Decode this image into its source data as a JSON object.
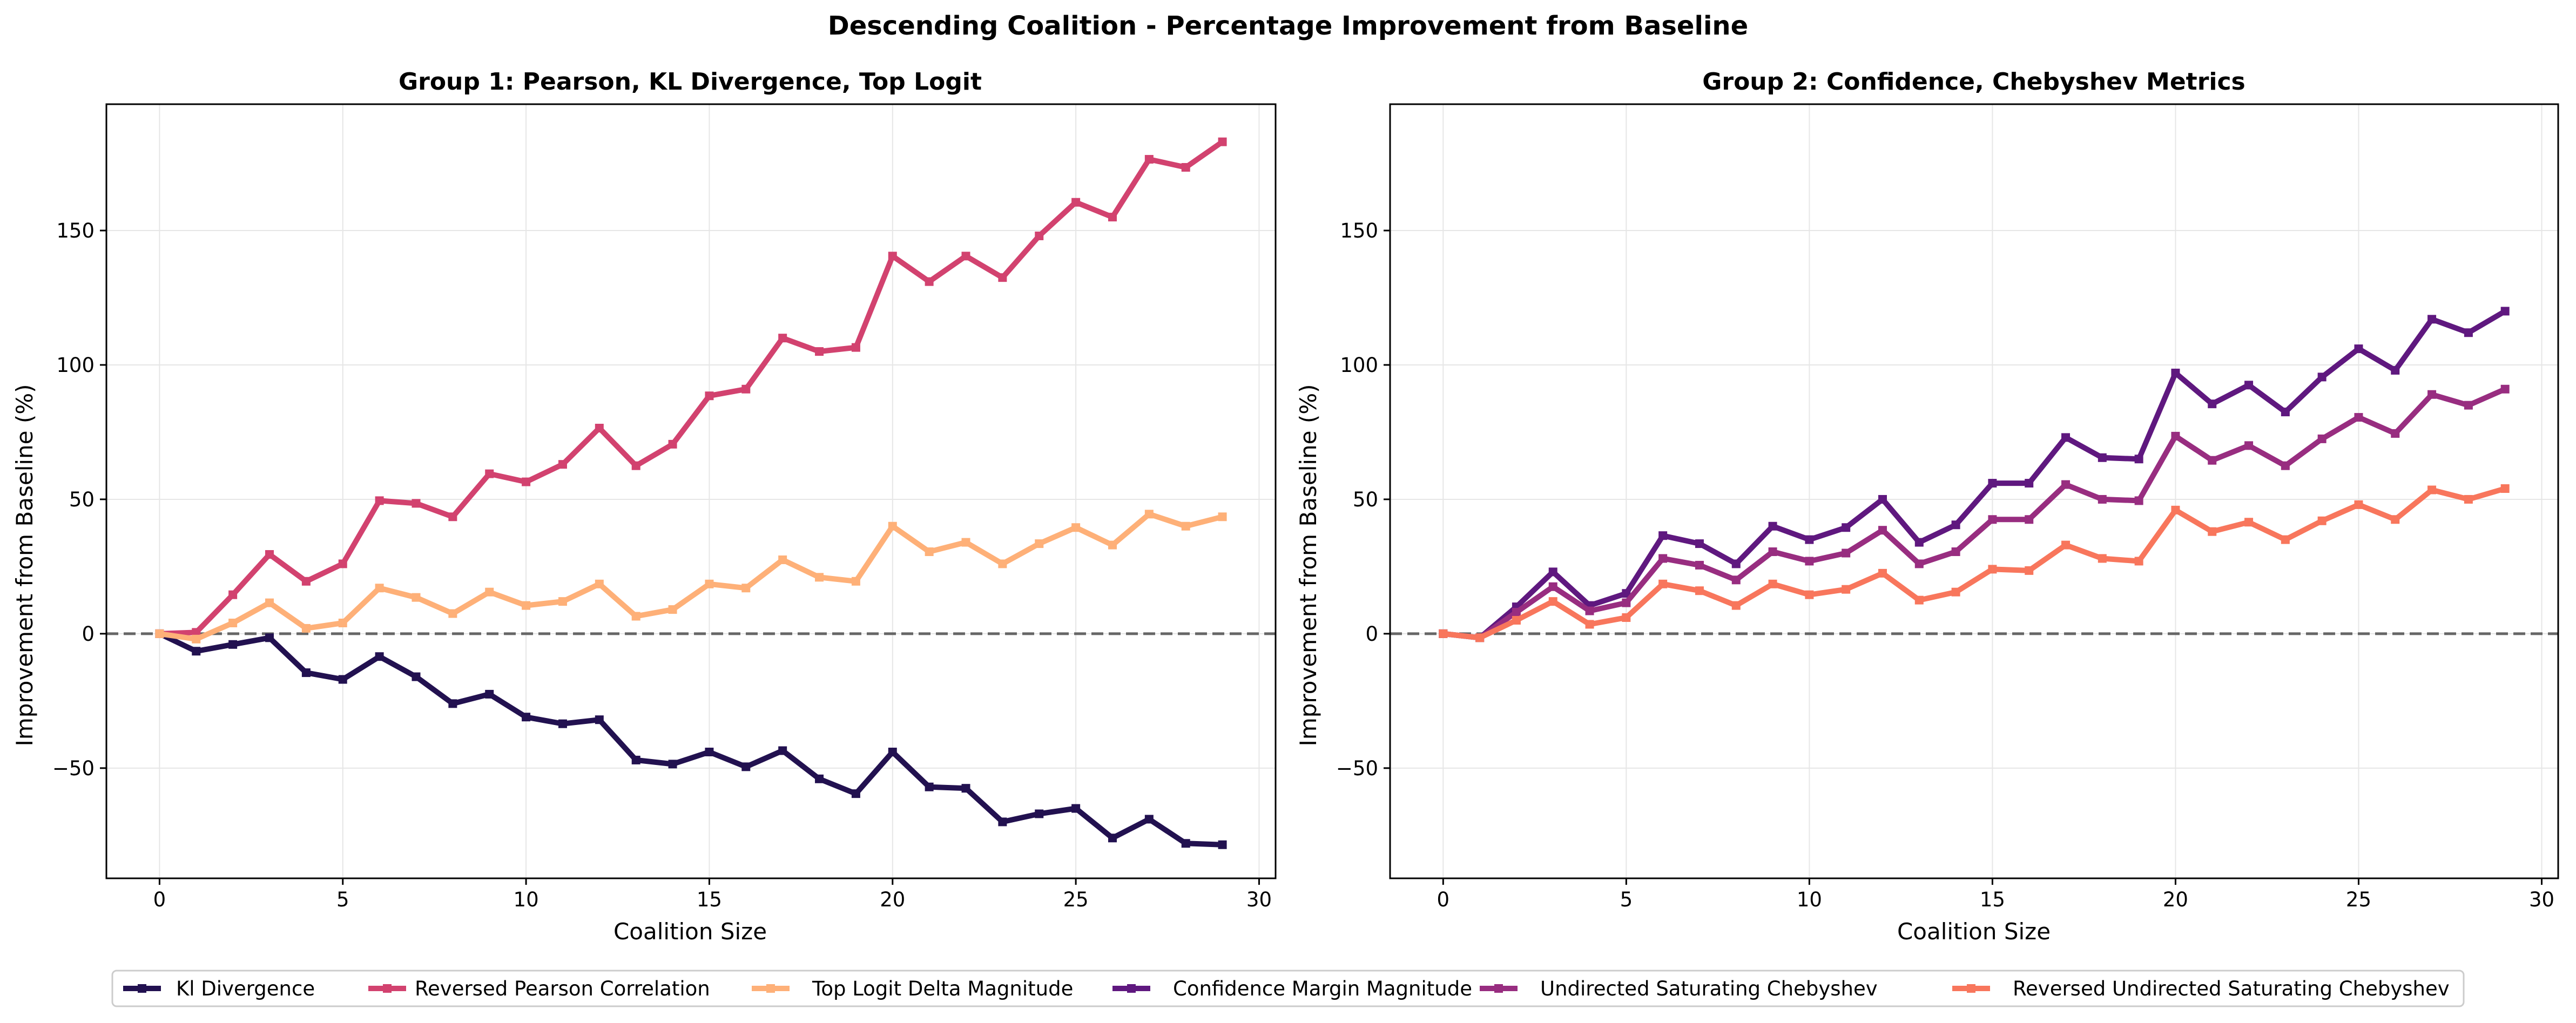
{
  "title": "Descending Coalition - Percentage Improvement from Baseline",
  "colors": {
    "kl": "#221150",
    "pearson": "#d2426f",
    "toplogit": "#feb078",
    "confidence": "#5f187f",
    "undirected": "#982d80",
    "reversed_undirected": "#f8765c",
    "baseline": "#666666",
    "grid": "#e6e6e6"
  },
  "legend": {
    "position": "bottom-center",
    "items": [
      {
        "label": "Kl Divergence",
        "color": "#221150"
      },
      {
        "label": "Reversed Pearson Correlation",
        "color": "#d2426f"
      },
      {
        "label": "Top Logit Delta Magnitude",
        "color": "#feb078"
      },
      {
        "label": "Confidence Margin Magnitude",
        "color": "#5f187f"
      },
      {
        "label": "Undirected Saturating Chebyshev",
        "color": "#982d80"
      },
      {
        "label": "Reversed Undirected Saturating Chebyshev",
        "color": "#f8765c"
      }
    ]
  },
  "chart_data": [
    {
      "type": "line",
      "title": "Group 1: Pearson, KL Divergence, Top Logit",
      "xlabel": "Coalition Size",
      "ylabel": "Improvement from Baseline (%)",
      "xlim": [
        -1.45,
        30.45
      ],
      "ylim": [
        -91,
        197
      ],
      "xticks": [
        0,
        5,
        10,
        15,
        20,
        25,
        30
      ],
      "yticks": [
        -50,
        0,
        50,
        100,
        150
      ],
      "grid": true,
      "baseline": 0,
      "x": [
        0,
        1,
        2,
        3,
        4,
        5,
        6,
        7,
        8,
        9,
        10,
        11,
        12,
        13,
        14,
        15,
        16,
        17,
        18,
        19,
        20,
        21,
        22,
        23,
        24,
        25,
        26,
        27,
        28,
        29
      ],
      "series": [
        {
          "name": "Kl Divergence",
          "color": "#221150",
          "values": [
            0,
            -6.5,
            -4,
            -1.5,
            -14.5,
            -17,
            -8.5,
            -16,
            -26,
            -22.5,
            -31,
            -33.5,
            -32,
            -47,
            -48.5,
            -44,
            -49.5,
            -43.5,
            -54,
            -59.5,
            -44,
            -57,
            -57.5,
            -70,
            -67,
            -65,
            -76,
            -69,
            -78,
            -78.5
          ]
        },
        {
          "name": "Reversed Pearson Correlation",
          "color": "#d2426f",
          "values": [
            0,
            0.5,
            14.5,
            29.5,
            19.5,
            26,
            49.5,
            48.5,
            43.5,
            59.5,
            56.5,
            63,
            76.5,
            62.5,
            70.5,
            88.5,
            91,
            110,
            105,
            106.5,
            140.5,
            131,
            140.5,
            132.5,
            148,
            160.5,
            155,
            176.5,
            173.5,
            183
          ]
        },
        {
          "name": "Top Logit Delta Magnitude",
          "color": "#feb078",
          "values": [
            0,
            -2,
            4,
            11.5,
            2,
            4,
            17,
            13.5,
            7.5,
            15.5,
            10.5,
            12,
            18.5,
            6.5,
            9,
            18.5,
            17,
            27.5,
            21,
            19.5,
            40,
            30.5,
            34,
            26,
            33.5,
            39.5,
            33,
            44.5,
            40,
            43.5
          ]
        }
      ]
    },
    {
      "type": "line",
      "title": "Group 2: Confidence, Chebyshev Metrics",
      "xlabel": "Coalition Size",
      "ylabel": "Improvement from Baseline (%)",
      "xlim": [
        -1.45,
        30.45
      ],
      "ylim": [
        -91,
        197
      ],
      "xticks": [
        0,
        5,
        10,
        15,
        20,
        25,
        30
      ],
      "yticks": [
        -50,
        0,
        50,
        100,
        150
      ],
      "grid": true,
      "baseline": 0,
      "x": [
        0,
        1,
        2,
        3,
        4,
        5,
        6,
        7,
        8,
        9,
        10,
        11,
        12,
        13,
        14,
        15,
        16,
        17,
        18,
        19,
        20,
        21,
        22,
        23,
        24,
        25,
        26,
        27,
        28,
        29
      ],
      "series": [
        {
          "name": "Confidence Margin Magnitude",
          "color": "#5f187f",
          "values": [
            0,
            -1.5,
            10,
            23,
            10.5,
            15,
            36.5,
            33.5,
            26,
            40,
            35,
            39.5,
            50,
            34,
            40.5,
            56,
            56,
            73,
            65.5,
            65,
            97,
            85.5,
            92.5,
            82.5,
            95.5,
            106,
            98,
            117,
            112,
            120
          ]
        },
        {
          "name": "Undirected Saturating Chebyshev",
          "color": "#982d80",
          "values": [
            0,
            -1.5,
            8,
            17.5,
            8.5,
            11.5,
            28,
            25.5,
            20,
            30.5,
            27,
            30,
            38.5,
            26,
            30.5,
            42.5,
            42.5,
            55.5,
            50,
            49.5,
            73.5,
            64.5,
            70,
            62.5,
            72.5,
            80.5,
            74.5,
            89,
            85,
            91
          ]
        },
        {
          "name": "Reversed Undirected Saturating Chebyshev",
          "color": "#f8765c",
          "values": [
            0,
            -1.5,
            5,
            12,
            3.5,
            6,
            18.5,
            16,
            10.5,
            18.5,
            14.5,
            16.5,
            22.5,
            12.5,
            15.5,
            24,
            23.5,
            33,
            28,
            27,
            46,
            38,
            41.5,
            35,
            42,
            48,
            42.5,
            53.5,
            50,
            54
          ]
        }
      ]
    }
  ]
}
